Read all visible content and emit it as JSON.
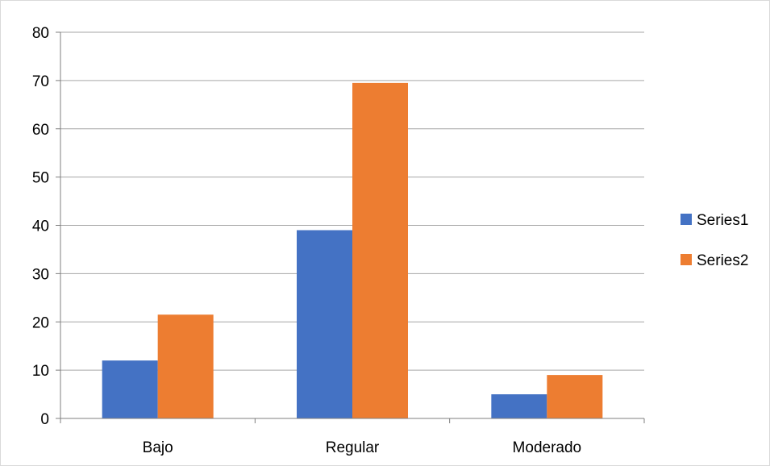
{
  "chart_data": {
    "type": "bar",
    "title": "",
    "xlabel": "",
    "ylabel": "",
    "categories": [
      "Bajo",
      "Regular",
      "Moderado"
    ],
    "series": [
      {
        "name": "Series1",
        "values": [
          12,
          39,
          5
        ],
        "color": "#4472C4"
      },
      {
        "name": "Series2",
        "values": [
          21.5,
          69.5,
          9
        ],
        "color": "#ED7D31"
      }
    ],
    "ylim": [
      0,
      80
    ],
    "yticks": [
      "0",
      "10",
      "20",
      "30",
      "40",
      "50",
      "60",
      "70",
      "80"
    ],
    "grid": true,
    "gridline_color": "#a6a6a6",
    "axis_color": "#7f7f7f",
    "legend_position": "right"
  }
}
